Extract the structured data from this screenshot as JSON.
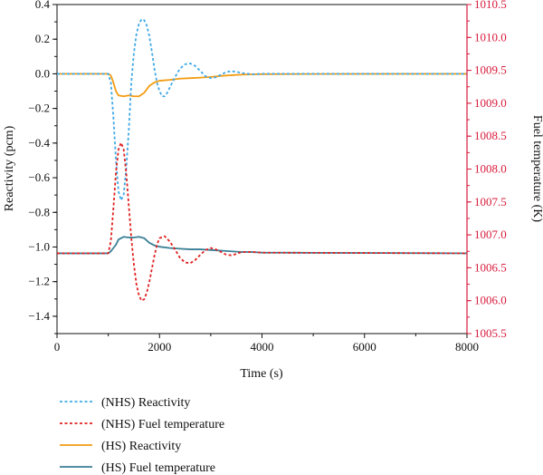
{
  "chart_data": {
    "type": "line",
    "title": "",
    "xlabel": "Time (s)",
    "ylabel": "Reactivity (pcm)",
    "y2label": "Fuel temperature (K)",
    "xlim": [
      0,
      8000
    ],
    "ylim": [
      -1.5,
      0.4
    ],
    "y2lim": [
      1005.5,
      1010.5
    ],
    "x_ticks": [
      0,
      2000,
      4000,
      6000,
      8000
    ],
    "y_ticks": [
      0.4,
      0.2,
      0.0,
      -0.2,
      -0.4,
      -0.6,
      -0.8,
      -1.0,
      -1.2,
      -1.4
    ],
    "y_tick_labels": [
      "0.4",
      "0.2",
      "0.0",
      "−0.2",
      "−0.4",
      "−0.6",
      "−0.8",
      "−1.0",
      "−1.2",
      "−1.4"
    ],
    "y2_ticks": [
      1005.5,
      1006.0,
      1006.5,
      1007.0,
      1007.5,
      1008.0,
      1008.5,
      1009.0,
      1009.5,
      1010.0,
      1010.5
    ],
    "y2_tick_labels": [
      "1005.5",
      "1006.0",
      "1006.5",
      "1007.0",
      "1007.5",
      "1008.0",
      "1008.5",
      "1009.0",
      "1009.5",
      "1010.0",
      "1010.5"
    ],
    "grid": false,
    "legend_position": "below",
    "colors": {
      "nhs_reactivity": "#3fa9e6",
      "nhs_fuel_temperature": "#e02020",
      "hs_reactivity": "#f39c12",
      "hs_fuel_temperature": "#3a7f96",
      "right_axis": "#d81b3c"
    },
    "series": [
      {
        "name": "(NHS)  Reactivity",
        "axis": "left",
        "style": "dotted",
        "color_key": "nhs_reactivity",
        "points": [
          [
            0,
            0
          ],
          [
            1000,
            0
          ],
          [
            1050,
            -0.05
          ],
          [
            1100,
            -0.25
          ],
          [
            1150,
            -0.5
          ],
          [
            1200,
            -0.68
          ],
          [
            1250,
            -0.73
          ],
          [
            1300,
            -0.7
          ],
          [
            1350,
            -0.55
          ],
          [
            1400,
            -0.33
          ],
          [
            1450,
            -0.05
          ],
          [
            1500,
            0.12
          ],
          [
            1550,
            0.23
          ],
          [
            1600,
            0.29
          ],
          [
            1650,
            0.315
          ],
          [
            1700,
            0.31
          ],
          [
            1750,
            0.28
          ],
          [
            1800,
            0.22
          ],
          [
            1850,
            0.13
          ],
          [
            1900,
            0.03
          ],
          [
            1950,
            -0.05
          ],
          [
            2000,
            -0.1
          ],
          [
            2050,
            -0.13
          ],
          [
            2100,
            -0.13
          ],
          [
            2150,
            -0.11
          ],
          [
            2200,
            -0.08
          ],
          [
            2300,
            -0.02
          ],
          [
            2400,
            0.03
          ],
          [
            2500,
            0.055
          ],
          [
            2600,
            0.06
          ],
          [
            2700,
            0.045
          ],
          [
            2800,
            0.015
          ],
          [
            2900,
            -0.015
          ],
          [
            3000,
            -0.025
          ],
          [
            3100,
            -0.02
          ],
          [
            3200,
            -0.005
          ],
          [
            3300,
            0.01
          ],
          [
            3400,
            0.015
          ],
          [
            3500,
            0.012
          ],
          [
            3600,
            0.005
          ],
          [
            3800,
            -0.003
          ],
          [
            4000,
            0
          ],
          [
            8000,
            0
          ]
        ]
      },
      {
        "name": "(NHS)  Fuel temperature",
        "axis": "right",
        "style": "dotted",
        "color_key": "nhs_fuel_temperature",
        "points": [
          [
            0,
            1006.72
          ],
          [
            1000,
            1006.72
          ],
          [
            1050,
            1006.9
          ],
          [
            1100,
            1007.4
          ],
          [
            1150,
            1007.95
          ],
          [
            1200,
            1008.3
          ],
          [
            1250,
            1008.4
          ],
          [
            1300,
            1008.3
          ],
          [
            1350,
            1007.95
          ],
          [
            1400,
            1007.45
          ],
          [
            1450,
            1006.95
          ],
          [
            1500,
            1006.55
          ],
          [
            1550,
            1006.25
          ],
          [
            1600,
            1006.08
          ],
          [
            1650,
            1006.0
          ],
          [
            1700,
            1006.02
          ],
          [
            1750,
            1006.12
          ],
          [
            1800,
            1006.28
          ],
          [
            1850,
            1006.48
          ],
          [
            1900,
            1006.68
          ],
          [
            1950,
            1006.85
          ],
          [
            2000,
            1006.95
          ],
          [
            2100,
            1006.98
          ],
          [
            2200,
            1006.9
          ],
          [
            2300,
            1006.78
          ],
          [
            2400,
            1006.65
          ],
          [
            2500,
            1006.58
          ],
          [
            2600,
            1006.57
          ],
          [
            2700,
            1006.62
          ],
          [
            2800,
            1006.7
          ],
          [
            2900,
            1006.77
          ],
          [
            3000,
            1006.8
          ],
          [
            3100,
            1006.78
          ],
          [
            3200,
            1006.74
          ],
          [
            3300,
            1006.7
          ],
          [
            3400,
            1006.69
          ],
          [
            3500,
            1006.71
          ],
          [
            3600,
            1006.74
          ],
          [
            3800,
            1006.74
          ],
          [
            4000,
            1006.73
          ],
          [
            8000,
            1006.72
          ]
        ]
      },
      {
        "name": "(HS) Reactivity",
        "axis": "left",
        "style": "solid",
        "color_key": "hs_reactivity",
        "points": [
          [
            0,
            0
          ],
          [
            1000,
            0
          ],
          [
            1050,
            -0.01
          ],
          [
            1100,
            -0.05
          ],
          [
            1150,
            -0.1
          ],
          [
            1200,
            -0.125
          ],
          [
            1300,
            -0.13
          ],
          [
            1400,
            -0.125
          ],
          [
            1500,
            -0.13
          ],
          [
            1600,
            -0.13
          ],
          [
            1700,
            -0.11
          ],
          [
            1800,
            -0.07
          ],
          [
            1900,
            -0.05
          ],
          [
            2000,
            -0.04
          ],
          [
            2200,
            -0.035
          ],
          [
            2400,
            -0.028
          ],
          [
            2600,
            -0.025
          ],
          [
            2800,
            -0.022
          ],
          [
            3000,
            -0.018
          ],
          [
            3200,
            -0.012
          ],
          [
            3400,
            -0.008
          ],
          [
            3600,
            -0.005
          ],
          [
            3800,
            -0.003
          ],
          [
            4000,
            -0.002
          ],
          [
            5000,
            -0.001
          ],
          [
            8000,
            0
          ]
        ]
      },
      {
        "name": "(HS) Fuel temperature",
        "axis": "right",
        "style": "solid",
        "color_key": "hs_fuel_temperature",
        "points": [
          [
            0,
            1006.72
          ],
          [
            1000,
            1006.72
          ],
          [
            1050,
            1006.75
          ],
          [
            1100,
            1006.8
          ],
          [
            1150,
            1006.85
          ],
          [
            1200,
            1006.93
          ],
          [
            1300,
            1006.97
          ],
          [
            1400,
            1006.96
          ],
          [
            1500,
            1006.96
          ],
          [
            1600,
            1006.97
          ],
          [
            1700,
            1006.95
          ],
          [
            1800,
            1006.88
          ],
          [
            1900,
            1006.84
          ],
          [
            2000,
            1006.82
          ],
          [
            2200,
            1006.8
          ],
          [
            2400,
            1006.79
          ],
          [
            2600,
            1006.78
          ],
          [
            2800,
            1006.78
          ],
          [
            3000,
            1006.77
          ],
          [
            3200,
            1006.76
          ],
          [
            3400,
            1006.75
          ],
          [
            3600,
            1006.74
          ],
          [
            3800,
            1006.74
          ],
          [
            4000,
            1006.73
          ],
          [
            8000,
            1006.72
          ]
        ]
      }
    ]
  }
}
